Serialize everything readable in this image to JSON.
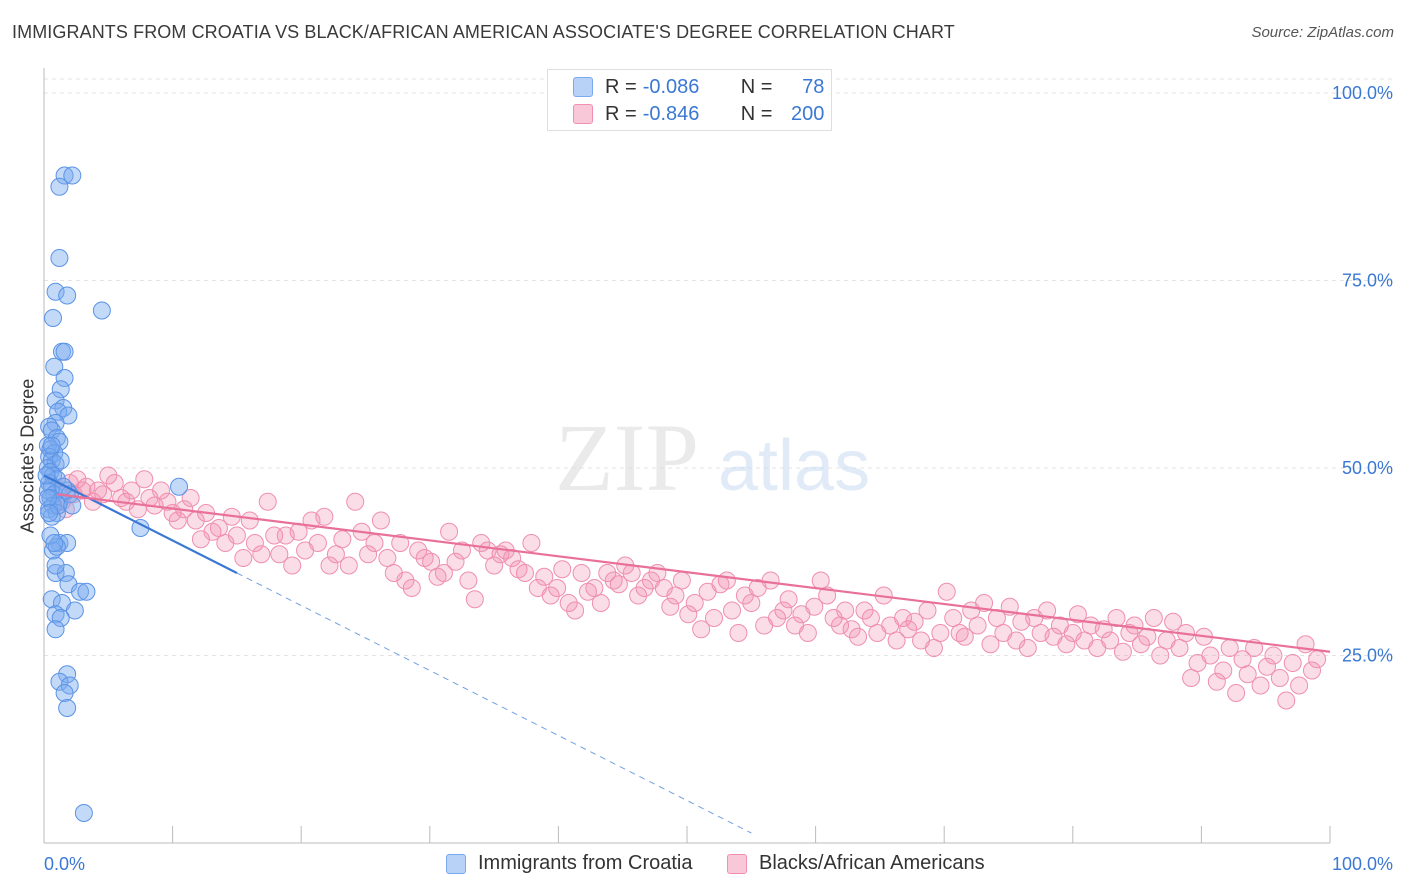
{
  "title": "IMMIGRANTS FROM CROATIA VS BLACK/AFRICAN AMERICAN ASSOCIATE'S DEGREE CORRELATION CHART",
  "source": "Source: ZipAtlas.com",
  "watermark": {
    "zip": "ZIP",
    "atlas": "atlas"
  },
  "colors": {
    "blue": "#7aaaf0",
    "blue_line": "#3a78d4",
    "pink": "#f28fb0",
    "pink_line": "#e8709a",
    "label": "#3a78d4"
  },
  "legend_top": [
    {
      "r_label": "R =",
      "r_value": "-0.086",
      "n_label": "N =",
      "n_value": "78",
      "color": "blue"
    },
    {
      "r_label": "R =",
      "r_value": "-0.846",
      "n_label": "N =",
      "n_value": "200",
      "color": "pink"
    }
  ],
  "legend_bottom": [
    {
      "label": "Immigrants from Croatia",
      "color": "blue"
    },
    {
      "label": "Blacks/African Americans",
      "color": "pink"
    }
  ],
  "chart_data": {
    "type": "scatter",
    "title": "IMMIGRANTS FROM CROATIA VS BLACK/AFRICAN AMERICAN ASSOCIATE'S DEGREE CORRELATION CHART",
    "xlabel": "",
    "ylabel": "Associate's Degree",
    "xlim": [
      0,
      100
    ],
    "ylim": [
      0,
      100
    ],
    "x_tick_labels": [
      "0.0%",
      "100.0%"
    ],
    "y_tick_labels": [
      "25.0%",
      "50.0%",
      "75.0%",
      "100.0%"
    ],
    "y_ticks": [
      25,
      50,
      75,
      100
    ],
    "grid": true,
    "series": [
      {
        "name": "Immigrants from Croatia",
        "color": "blue",
        "r": -0.086,
        "n": 78,
        "trend": {
          "x0": 0,
          "y0": 49,
          "x1": 15,
          "y1": 36,
          "dashed_to_x": 55
        },
        "points": [
          [
            1.6,
            89
          ],
          [
            2.2,
            89
          ],
          [
            1.2,
            87.5
          ],
          [
            1.2,
            78
          ],
          [
            0.9,
            73.5
          ],
          [
            1.8,
            73
          ],
          [
            4.5,
            71
          ],
          [
            0.7,
            70
          ],
          [
            1.4,
            65.5
          ],
          [
            1.6,
            65.5
          ],
          [
            0.8,
            63.5
          ],
          [
            1.6,
            62
          ],
          [
            1.3,
            60.5
          ],
          [
            0.9,
            59
          ],
          [
            1.5,
            58
          ],
          [
            1.1,
            57.5
          ],
          [
            1.9,
            57
          ],
          [
            0.9,
            56
          ],
          [
            0.4,
            55.5
          ],
          [
            0.6,
            55
          ],
          [
            1.0,
            54
          ],
          [
            1.2,
            53.5
          ],
          [
            0.3,
            53
          ],
          [
            0.5,
            52.5
          ],
          [
            0.8,
            52
          ],
          [
            0.4,
            51.5
          ],
          [
            0.6,
            51
          ],
          [
            0.9,
            50.5
          ],
          [
            0.3,
            50
          ],
          [
            0.5,
            49.5
          ],
          [
            0.7,
            49
          ],
          [
            1.0,
            48.5
          ],
          [
            0.4,
            48
          ],
          [
            0.6,
            47.5
          ],
          [
            0.3,
            47
          ],
          [
            0.8,
            46.5
          ],
          [
            0.5,
            46
          ],
          [
            1.2,
            45.5
          ],
          [
            0.7,
            45
          ],
          [
            0.4,
            44.5
          ],
          [
            1.0,
            44
          ],
          [
            0.6,
            43.5
          ],
          [
            1.8,
            47
          ],
          [
            2.0,
            46.5
          ],
          [
            10.5,
            47.5
          ],
          [
            7.5,
            42
          ],
          [
            1.2,
            40
          ],
          [
            1.8,
            40
          ],
          [
            0.7,
            39
          ],
          [
            1.0,
            39.5
          ],
          [
            0.9,
            36
          ],
          [
            1.7,
            36
          ],
          [
            1.9,
            34.5
          ],
          [
            2.8,
            33.5
          ],
          [
            3.3,
            33.5
          ],
          [
            0.6,
            32.5
          ],
          [
            1.4,
            32
          ],
          [
            2.4,
            31
          ],
          [
            0.9,
            30.5
          ],
          [
            1.3,
            30
          ],
          [
            0.9,
            28.5
          ],
          [
            1.8,
            22.5
          ],
          [
            1.2,
            21.5
          ],
          [
            2.0,
            21
          ],
          [
            1.6,
            20
          ],
          [
            1.8,
            18
          ],
          [
            3.1,
            4
          ],
          [
            0.5,
            41
          ],
          [
            0.9,
            37
          ],
          [
            1.1,
            45
          ],
          [
            0.2,
            49
          ],
          [
            0.3,
            46
          ],
          [
            0.6,
            53
          ],
          [
            1.3,
            51
          ],
          [
            0.4,
            44
          ],
          [
            1.5,
            47.5
          ],
          [
            0.8,
            40
          ],
          [
            2.2,
            45
          ]
        ]
      },
      {
        "name": "Blacks/African Americans",
        "color": "pink",
        "r": -0.846,
        "n": 200,
        "trend": {
          "x0": 1,
          "y0": 46.5,
          "x1": 100,
          "y1": 25.5
        },
        "points": [
          [
            1.1,
            47
          ],
          [
            1.4,
            45.5
          ],
          [
            1.7,
            44.5
          ],
          [
            2.0,
            48
          ],
          [
            2.3,
            46.5
          ],
          [
            2.6,
            48.5
          ],
          [
            3.0,
            47
          ],
          [
            3.3,
            47.5
          ],
          [
            3.8,
            45.5
          ],
          [
            4.2,
            47
          ],
          [
            4.6,
            46.5
          ],
          [
            5.0,
            49
          ],
          [
            5.5,
            48
          ],
          [
            6.0,
            46
          ],
          [
            6.4,
            45.5
          ],
          [
            6.8,
            47
          ],
          [
            7.3,
            44.5
          ],
          [
            7.8,
            48.5
          ],
          [
            8.2,
            46
          ],
          [
            8.6,
            45
          ],
          [
            9.1,
            47
          ],
          [
            9.6,
            45.5
          ],
          [
            10.0,
            44
          ],
          [
            10.4,
            43
          ],
          [
            10.9,
            44.5
          ],
          [
            11.4,
            46
          ],
          [
            11.8,
            43
          ],
          [
            12.2,
            40.5
          ],
          [
            12.6,
            44
          ],
          [
            13.1,
            41.5
          ],
          [
            13.6,
            42
          ],
          [
            14.1,
            40
          ],
          [
            14.6,
            43.5
          ],
          [
            15.0,
            41
          ],
          [
            15.5,
            38
          ],
          [
            16.0,
            43
          ],
          [
            16.4,
            40
          ],
          [
            16.9,
            38.5
          ],
          [
            17.4,
            45.5
          ],
          [
            17.9,
            41
          ],
          [
            18.3,
            38.5
          ],
          [
            18.8,
            41
          ],
          [
            19.3,
            37
          ],
          [
            19.8,
            41.5
          ],
          [
            20.3,
            39
          ],
          [
            20.8,
            43
          ],
          [
            21.3,
            40
          ],
          [
            21.8,
            43.5
          ],
          [
            22.2,
            37
          ],
          [
            22.7,
            38.5
          ],
          [
            23.2,
            40.5
          ],
          [
            23.7,
            37
          ],
          [
            24.2,
            45.5
          ],
          [
            24.7,
            41.5
          ],
          [
            25.2,
            38.5
          ],
          [
            25.7,
            40
          ],
          [
            26.2,
            43
          ],
          [
            26.7,
            38
          ],
          [
            27.2,
            36
          ],
          [
            27.7,
            40
          ],
          [
            28.1,
            35
          ],
          [
            28.6,
            34
          ],
          [
            29.1,
            39
          ],
          [
            29.6,
            38
          ],
          [
            30.1,
            37.5
          ],
          [
            30.6,
            35.5
          ],
          [
            31.1,
            36
          ],
          [
            31.5,
            41.5
          ],
          [
            32.0,
            37.5
          ],
          [
            32.5,
            39
          ],
          [
            33.0,
            35
          ],
          [
            33.5,
            32.5
          ],
          [
            34.0,
            40
          ],
          [
            34.5,
            39
          ],
          [
            35.0,
            37
          ],
          [
            35.5,
            38.5
          ],
          [
            35.9,
            39
          ],
          [
            36.4,
            38
          ],
          [
            36.9,
            36.5
          ],
          [
            37.4,
            36
          ],
          [
            37.9,
            40
          ],
          [
            38.4,
            34
          ],
          [
            38.9,
            35.5
          ],
          [
            39.4,
            33
          ],
          [
            39.9,
            34
          ],
          [
            40.3,
            36.5
          ],
          [
            40.8,
            32
          ],
          [
            41.3,
            31
          ],
          [
            41.8,
            36
          ],
          [
            42.3,
            33.5
          ],
          [
            42.8,
            34
          ],
          [
            43.3,
            32
          ],
          [
            43.8,
            36
          ],
          [
            44.3,
            35
          ],
          [
            44.7,
            34.5
          ],
          [
            45.2,
            37
          ],
          [
            45.7,
            36
          ],
          [
            46.2,
            33
          ],
          [
            46.7,
            34
          ],
          [
            47.2,
            35
          ],
          [
            47.7,
            36
          ],
          [
            48.2,
            34
          ],
          [
            48.7,
            31.5
          ],
          [
            49.1,
            33
          ],
          [
            49.6,
            35
          ],
          [
            50.1,
            30.5
          ],
          [
            50.6,
            32
          ],
          [
            51.1,
            28.5
          ],
          [
            51.6,
            33.5
          ],
          [
            52.1,
            30
          ],
          [
            52.6,
            34.5
          ],
          [
            53.1,
            35
          ],
          [
            53.5,
            31
          ],
          [
            54.0,
            28
          ],
          [
            54.5,
            33
          ],
          [
            55.0,
            32
          ],
          [
            55.5,
            34
          ],
          [
            56.0,
            29
          ],
          [
            56.5,
            35
          ],
          [
            57.0,
            30
          ],
          [
            57.5,
            31
          ],
          [
            57.9,
            32.5
          ],
          [
            58.4,
            29
          ],
          [
            58.9,
            30.5
          ],
          [
            59.4,
            28
          ],
          [
            59.9,
            31.5
          ],
          [
            60.4,
            35
          ],
          [
            60.9,
            33
          ],
          [
            61.4,
            30
          ],
          [
            61.9,
            29
          ],
          [
            62.3,
            31
          ],
          [
            62.8,
            28.5
          ],
          [
            63.3,
            27.5
          ],
          [
            63.8,
            31
          ],
          [
            64.3,
            30
          ],
          [
            64.8,
            28
          ],
          [
            65.3,
            33
          ],
          [
            65.8,
            29
          ],
          [
            66.3,
            27
          ],
          [
            66.8,
            30
          ],
          [
            67.2,
            28.5
          ],
          [
            67.7,
            29.5
          ],
          [
            68.2,
            27
          ],
          [
            68.7,
            31
          ],
          [
            69.2,
            26
          ],
          [
            69.7,
            28
          ],
          [
            70.2,
            33.5
          ],
          [
            70.7,
            30
          ],
          [
            71.2,
            28
          ],
          [
            71.6,
            27.5
          ],
          [
            72.1,
            31
          ],
          [
            72.6,
            29
          ],
          [
            73.1,
            32
          ],
          [
            73.6,
            26.5
          ],
          [
            74.1,
            30
          ],
          [
            74.6,
            28
          ],
          [
            75.1,
            31.5
          ],
          [
            75.6,
            27
          ],
          [
            76.0,
            29.5
          ],
          [
            76.5,
            26
          ],
          [
            77.0,
            30
          ],
          [
            77.5,
            28
          ],
          [
            78.0,
            31
          ],
          [
            78.5,
            27.5
          ],
          [
            79.0,
            29
          ],
          [
            79.5,
            26.5
          ],
          [
            80.0,
            28
          ],
          [
            80.4,
            30.5
          ],
          [
            80.9,
            27
          ],
          [
            81.4,
            29
          ],
          [
            81.9,
            26
          ],
          [
            82.4,
            28.5
          ],
          [
            82.9,
            27
          ],
          [
            83.4,
            30
          ],
          [
            83.9,
            25.5
          ],
          [
            84.4,
            28
          ],
          [
            84.8,
            29
          ],
          [
            85.3,
            26.5
          ],
          [
            85.8,
            27.5
          ],
          [
            86.3,
            30
          ],
          [
            86.8,
            25
          ],
          [
            87.3,
            27
          ],
          [
            87.8,
            29.5
          ],
          [
            88.3,
            26
          ],
          [
            88.8,
            28
          ],
          [
            89.2,
            22
          ],
          [
            89.7,
            24
          ],
          [
            90.2,
            27.5
          ],
          [
            90.7,
            25
          ],
          [
            91.2,
            21.5
          ],
          [
            91.7,
            23
          ],
          [
            92.2,
            26
          ],
          [
            92.7,
            20
          ],
          [
            93.2,
            24.5
          ],
          [
            93.6,
            22.5
          ],
          [
            94.1,
            26
          ],
          [
            94.6,
            21
          ],
          [
            95.1,
            23.5
          ],
          [
            95.6,
            25
          ],
          [
            96.1,
            22
          ],
          [
            96.6,
            19
          ],
          [
            97.1,
            24
          ],
          [
            97.6,
            21
          ],
          [
            98.1,
            26.5
          ],
          [
            98.6,
            23
          ],
          [
            99.0,
            24.5
          ]
        ]
      }
    ]
  }
}
